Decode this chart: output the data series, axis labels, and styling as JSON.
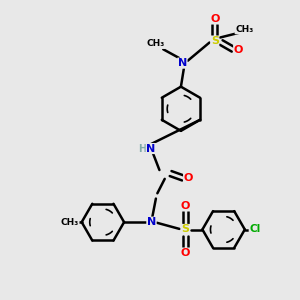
{
  "bg_color": "#e8e8e8",
  "atom_colors": {
    "C": "#000000",
    "N": "#0000cc",
    "O": "#ff0000",
    "S": "#cccc00",
    "Cl": "#00aa00",
    "H": "#7faaaa"
  },
  "bond_color": "#000000",
  "bond_width": 1.8,
  "fig_size": [
    3.0,
    3.0
  ],
  "dpi": 100,
  "xlim": [
    0,
    10
  ],
  "ylim": [
    0,
    10
  ]
}
